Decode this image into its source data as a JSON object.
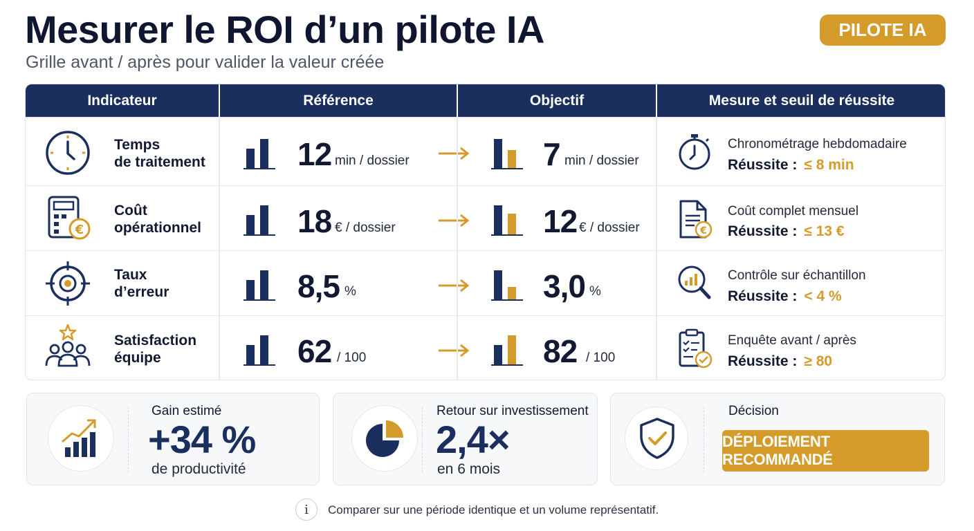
{
  "header": {
    "title": "Mesurer le ROI d’un pilote IA",
    "subtitle": "Grille avant / après pour valider la valeur créée",
    "badge": "PILOTE IA"
  },
  "table": {
    "columns": [
      "Indicateur",
      "Référence",
      "Objectif",
      "Mesure et seuil de réussite"
    ],
    "rows": [
      {
        "icon": "clock-icon",
        "label": "Temps de traitement",
        "reference": {
          "value": "12",
          "unit": "min / dossier"
        },
        "objective": {
          "value": "7",
          "unit": "min / dossier"
        },
        "measure": {
          "icon": "stopwatch-icon",
          "method": "Chronométrage hebdomadaire",
          "success_label": "Réussite :",
          "threshold": "≤ 8 min"
        }
      },
      {
        "icon": "calculator-euro-icon",
        "label": "Coût opérationnel",
        "reference": {
          "value": "18",
          "unit": "€ / dossier"
        },
        "objective": {
          "value": "12",
          "unit": "€ / dossier"
        },
        "measure": {
          "icon": "document-euro-icon",
          "method": "Coût complet mensuel",
          "success_label": "Réussite :",
          "threshold": "≤ 13 €"
        }
      },
      {
        "icon": "target-icon",
        "label": "Taux d’erreur",
        "reference": {
          "value": "8,5",
          "unit": "%"
        },
        "objective": {
          "value": "3,0",
          "unit": "%"
        },
        "measure": {
          "icon": "magnifier-chart-icon",
          "method": "Contrôle sur échantillon",
          "success_label": "Réussite :",
          "threshold": "< 4 %"
        }
      },
      {
        "icon": "team-star-icon",
        "label": "Satisfaction équipe",
        "reference": {
          "value": "62",
          "unit": "/ 100"
        },
        "objective": {
          "value": "82",
          "unit": "/ 100"
        },
        "measure": {
          "icon": "clipboard-check-icon",
          "method": "Enquête avant / après",
          "success_label": "Réussite :",
          "threshold": "≥ 80"
        }
      }
    ]
  },
  "kpis": {
    "gain": {
      "label": "Gain estimé",
      "value": "+34 %",
      "sub": "de productivité",
      "icon": "growth-chart-icon"
    },
    "roi": {
      "label": "Retour sur investissement",
      "value": "2,4×",
      "sub": "en 6 mois",
      "icon": "pie-chart-icon"
    },
    "decision": {
      "label": "Décision",
      "button": "DÉPLOIEMENT RECOMMANDÉ",
      "icon": "shield-check-icon"
    }
  },
  "footer": {
    "note": "Comparer sur une période identique et un volume représentatif.",
    "icon": "info-icon"
  },
  "colors": {
    "navy": "#1b2f5e",
    "gold": "#d49a2a"
  }
}
